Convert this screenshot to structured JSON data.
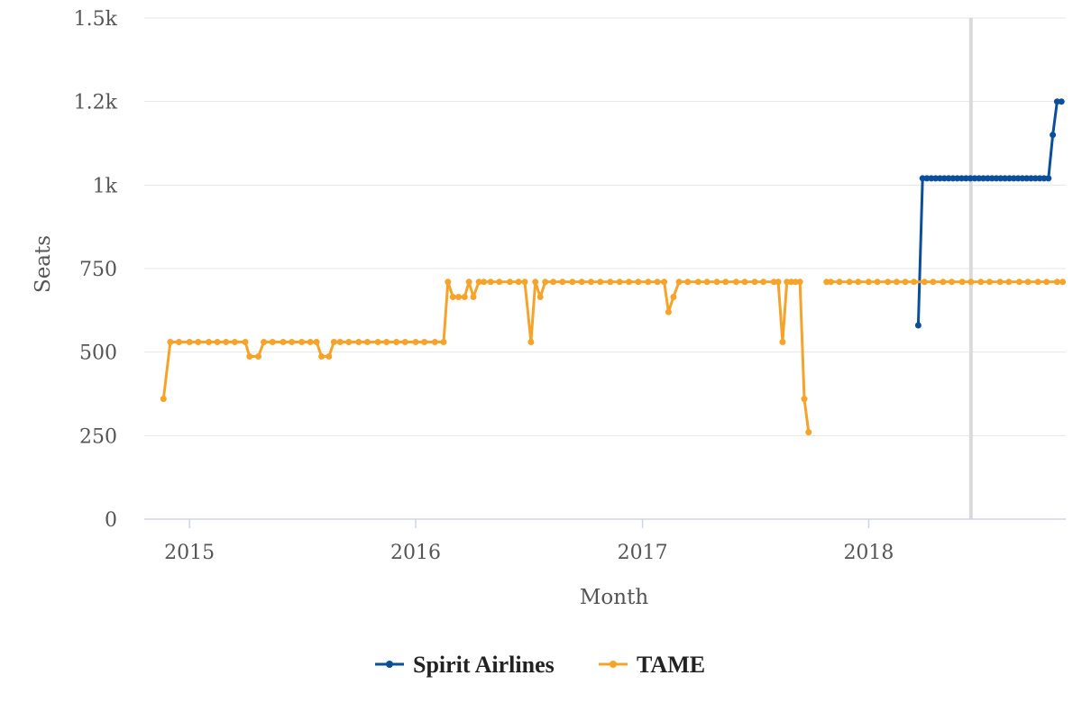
{
  "chart_data": {
    "type": "line",
    "xlabel": "Month",
    "ylabel": "Seats",
    "y_ticks": [
      {
        "value": 0,
        "label": "0"
      },
      {
        "value": 250,
        "label": "250"
      },
      {
        "value": 500,
        "label": "500"
      },
      {
        "value": 750,
        "label": "750"
      },
      {
        "value": 1000,
        "label": "1k"
      },
      {
        "value": 1250,
        "label": "1.2k"
      },
      {
        "value": 1500,
        "label": "1.5k"
      }
    ],
    "ylim": [
      0,
      1500
    ],
    "xlim": [
      "2014-10-20",
      "2018-11-15"
    ],
    "x_ticks": [
      {
        "value": "2015-01-01",
        "label": "2015"
      },
      {
        "value": "2016-01-01",
        "label": "2016"
      },
      {
        "value": "2017-01-01",
        "label": "2017"
      },
      {
        "value": "2018-01-01",
        "label": "2018"
      }
    ],
    "crosshair_x": "2018-06-15",
    "grid": true,
    "legend_position": "bottom",
    "series": [
      {
        "name": "Spirit Airlines",
        "color": "#0b4f9c",
        "points": [
          [
            "2018-03-22",
            580
          ],
          [
            "2018-03-29",
            1020
          ],
          [
            "2018-04-05",
            1020
          ],
          [
            "2018-04-12",
            1020
          ],
          [
            "2018-04-19",
            1020
          ],
          [
            "2018-04-26",
            1020
          ],
          [
            "2018-05-03",
            1020
          ],
          [
            "2018-05-10",
            1020
          ],
          [
            "2018-05-17",
            1020
          ],
          [
            "2018-05-24",
            1020
          ],
          [
            "2018-05-31",
            1020
          ],
          [
            "2018-06-07",
            1020
          ],
          [
            "2018-06-14",
            1020
          ],
          [
            "2018-06-21",
            1020
          ],
          [
            "2018-06-28",
            1020
          ],
          [
            "2018-07-05",
            1020
          ],
          [
            "2018-07-12",
            1020
          ],
          [
            "2018-07-19",
            1020
          ],
          [
            "2018-07-26",
            1020
          ],
          [
            "2018-08-02",
            1020
          ],
          [
            "2018-08-09",
            1020
          ],
          [
            "2018-08-16",
            1020
          ],
          [
            "2018-08-23",
            1020
          ],
          [
            "2018-08-30",
            1020
          ],
          [
            "2018-09-06",
            1020
          ],
          [
            "2018-09-13",
            1020
          ],
          [
            "2018-09-20",
            1020
          ],
          [
            "2018-09-27",
            1020
          ],
          [
            "2018-10-04",
            1020
          ],
          [
            "2018-10-11",
            1020
          ],
          [
            "2018-10-18",
            1020
          ],
          [
            "2018-10-25",
            1150
          ],
          [
            "2018-11-01",
            1250
          ],
          [
            "2018-11-08",
            1250
          ]
        ]
      },
      {
        "name": "TAME",
        "color": "#f6a32a",
        "points": [
          [
            "2014-11-20",
            360
          ],
          [
            "2014-12-01",
            530
          ],
          [
            "2014-12-15",
            530
          ],
          [
            "2015-01-01",
            530
          ],
          [
            "2015-01-15",
            530
          ],
          [
            "2015-02-01",
            530
          ],
          [
            "2015-02-15",
            530
          ],
          [
            "2015-03-01",
            530
          ],
          [
            "2015-03-15",
            530
          ],
          [
            "2015-04-01",
            530
          ],
          [
            "2015-04-08",
            487
          ],
          [
            "2015-04-22",
            487
          ],
          [
            "2015-05-01",
            530
          ],
          [
            "2015-05-15",
            530
          ],
          [
            "2015-06-01",
            530
          ],
          [
            "2015-06-15",
            530
          ],
          [
            "2015-07-01",
            530
          ],
          [
            "2015-07-15",
            530
          ],
          [
            "2015-07-25",
            530
          ],
          [
            "2015-08-02",
            487
          ],
          [
            "2015-08-14",
            487
          ],
          [
            "2015-08-22",
            530
          ],
          [
            "2015-09-01",
            530
          ],
          [
            "2015-09-15",
            530
          ],
          [
            "2015-10-01",
            530
          ],
          [
            "2015-10-15",
            530
          ],
          [
            "2015-11-01",
            530
          ],
          [
            "2015-11-15",
            530
          ],
          [
            "2015-12-01",
            530
          ],
          [
            "2015-12-15",
            530
          ],
          [
            "2016-01-01",
            530
          ],
          [
            "2016-01-15",
            530
          ],
          [
            "2016-02-01",
            530
          ],
          [
            "2016-02-15",
            530
          ],
          [
            "2016-02-22",
            710
          ],
          [
            "2016-03-01",
            665
          ],
          [
            "2016-03-10",
            665
          ],
          [
            "2016-03-20",
            665
          ],
          [
            "2016-03-27",
            710
          ],
          [
            "2016-04-03",
            665
          ],
          [
            "2016-04-12",
            710
          ],
          [
            "2016-04-20",
            710
          ],
          [
            "2016-05-01",
            710
          ],
          [
            "2016-05-15",
            710
          ],
          [
            "2016-06-01",
            710
          ],
          [
            "2016-06-15",
            710
          ],
          [
            "2016-06-25",
            710
          ],
          [
            "2016-07-05",
            530
          ],
          [
            "2016-07-12",
            710
          ],
          [
            "2016-07-20",
            665
          ],
          [
            "2016-07-28",
            710
          ],
          [
            "2016-08-10",
            710
          ],
          [
            "2016-08-25",
            710
          ],
          [
            "2016-09-10",
            710
          ],
          [
            "2016-09-25",
            710
          ],
          [
            "2016-10-10",
            710
          ],
          [
            "2016-10-25",
            710
          ],
          [
            "2016-11-10",
            710
          ],
          [
            "2016-11-25",
            710
          ],
          [
            "2016-12-10",
            710
          ],
          [
            "2016-12-25",
            710
          ],
          [
            "2017-01-10",
            710
          ],
          [
            "2017-01-25",
            710
          ],
          [
            "2017-02-05",
            710
          ],
          [
            "2017-02-12",
            620
          ],
          [
            "2017-02-20",
            665
          ],
          [
            "2017-03-01",
            710
          ],
          [
            "2017-03-15",
            710
          ],
          [
            "2017-04-01",
            710
          ],
          [
            "2017-04-15",
            710
          ],
          [
            "2017-05-01",
            710
          ],
          [
            "2017-05-15",
            710
          ],
          [
            "2017-06-01",
            710
          ],
          [
            "2017-06-15",
            710
          ],
          [
            "2017-07-01",
            710
          ],
          [
            "2017-07-15",
            710
          ],
          [
            "2017-08-01",
            710
          ],
          [
            "2017-08-08",
            710
          ],
          [
            "2017-08-15",
            530
          ],
          [
            "2017-08-22",
            710
          ],
          [
            "2017-08-29",
            710
          ],
          [
            "2017-09-05",
            710
          ],
          [
            "2017-09-12",
            710
          ],
          [
            "2017-09-19",
            360
          ],
          [
            "2017-09-26",
            260
          ],
          null,
          [
            "2017-10-25",
            710
          ],
          [
            "2017-11-01",
            710
          ],
          [
            "2017-11-15",
            710
          ],
          [
            "2017-12-01",
            710
          ],
          [
            "2017-12-15",
            710
          ],
          [
            "2018-01-01",
            710
          ],
          [
            "2018-01-15",
            710
          ],
          [
            "2018-02-01",
            710
          ],
          [
            "2018-02-15",
            710
          ],
          [
            "2018-03-01",
            710
          ],
          [
            "2018-03-15",
            710
          ],
          [
            "2018-04-01",
            710
          ],
          [
            "2018-04-15",
            710
          ],
          [
            "2018-05-01",
            710
          ],
          [
            "2018-05-15",
            710
          ],
          [
            "2018-06-01",
            710
          ],
          [
            "2018-06-15",
            710
          ],
          [
            "2018-07-01",
            710
          ],
          [
            "2018-07-15",
            710
          ],
          [
            "2018-08-01",
            710
          ],
          [
            "2018-08-15",
            710
          ],
          [
            "2018-09-01",
            710
          ],
          [
            "2018-09-15",
            710
          ],
          [
            "2018-10-01",
            710
          ],
          [
            "2018-10-15",
            710
          ],
          [
            "2018-11-01",
            710
          ],
          [
            "2018-11-10",
            710
          ]
        ]
      }
    ]
  }
}
